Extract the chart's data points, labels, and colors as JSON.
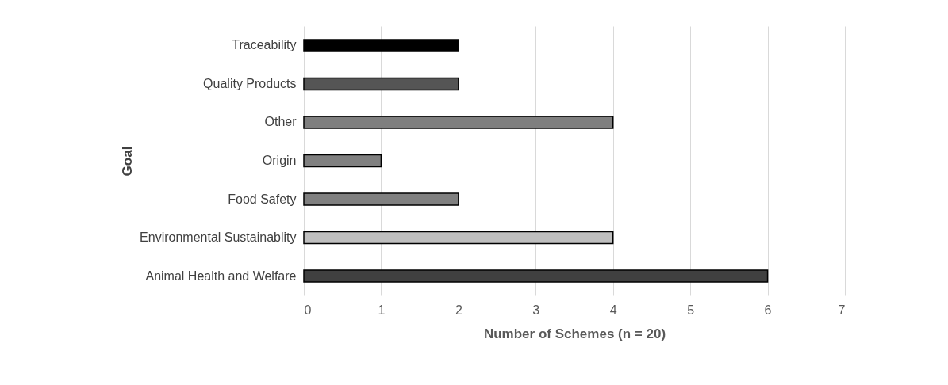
{
  "chart_data": {
    "type": "bar",
    "orientation": "horizontal",
    "xlabel": "Number of Schemes (n = 20)",
    "ylabel": "Goal",
    "categories": [
      "Traceability",
      "Quality Products",
      "Other",
      "Origin",
      "Food Safety",
      "Environmental Sustainablity",
      "Animal Health and Welfare"
    ],
    "values": [
      2,
      2,
      4,
      1,
      2,
      4,
      6
    ],
    "colors": [
      "#000000",
      "#555555",
      "#7f7f7f",
      "#808080",
      "#808080",
      "#bfbfbf",
      "#404040"
    ],
    "xlim": [
      0,
      7
    ],
    "xticks": [
      0,
      1,
      2,
      3,
      4,
      5,
      6,
      7
    ],
    "grid": "x"
  }
}
